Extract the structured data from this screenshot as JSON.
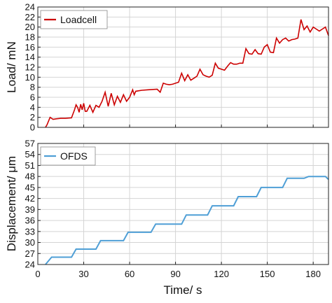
{
  "chart_data": [
    {
      "type": "line",
      "title": "",
      "xlabel": "",
      "ylabel": "Load/ mN",
      "xlim": [
        0,
        190
      ],
      "ylim": [
        0,
        24
      ],
      "xticks": [
        0,
        30,
        60,
        90,
        120,
        150,
        180
      ],
      "yticks": [
        0,
        2,
        4,
        6,
        8,
        10,
        12,
        14,
        16,
        18,
        20,
        22,
        24
      ],
      "grid": true,
      "legend_position": "top-left",
      "series": [
        {
          "name": "Loadcell",
          "color": "#cc0000",
          "x": [
            5,
            6,
            8,
            10,
            12,
            15,
            18,
            22,
            24,
            25,
            26,
            27,
            28,
            29,
            30,
            31,
            32,
            34,
            36,
            38,
            40,
            42,
            44,
            46,
            48,
            50,
            52,
            54,
            56,
            58,
            60,
            62,
            63,
            64,
            66,
            68,
            72,
            78,
            80,
            82,
            84,
            86,
            88,
            92,
            94,
            96,
            98,
            100,
            102,
            104,
            106,
            108,
            110,
            112,
            114,
            116,
            118,
            120,
            122,
            124,
            126,
            128,
            130,
            132,
            134,
            136,
            138,
            140,
            142,
            144,
            146,
            148,
            150,
            152,
            154,
            156,
            158,
            160,
            162,
            164,
            166,
            168,
            170,
            172,
            174,
            176,
            178,
            180,
            182,
            184,
            186,
            188,
            190
          ],
          "y": [
            0,
            0.5,
            2.0,
            1.6,
            1.7,
            1.8,
            1.8,
            1.9,
            3.5,
            4.5,
            4.0,
            3.0,
            4.6,
            3.5,
            4.8,
            3.2,
            3.2,
            4.4,
            3.0,
            4.4,
            4.0,
            5.2,
            7.0,
            4.2,
            6.8,
            4.5,
            6.2,
            5.0,
            6.5,
            5.2,
            6.0,
            7.5,
            6.5,
            7.2,
            7.3,
            7.4,
            7.5,
            7.6,
            7.0,
            8.8,
            8.6,
            8.5,
            8.6,
            9.0,
            10.8,
            9.3,
            10.5,
            9.4,
            9.8,
            10.2,
            11.6,
            10.5,
            10.2,
            10.0,
            10.4,
            12.8,
            11.8,
            11.6,
            11.4,
            12.2,
            12.9,
            12.6,
            12.6,
            12.8,
            12.8,
            15.7,
            14.7,
            14.6,
            15.5,
            14.7,
            14.6,
            16.0,
            16.5,
            15.0,
            14.9,
            17.8,
            16.8,
            17.5,
            17.8,
            17.2,
            17.5,
            17.6,
            17.8,
            21.5,
            19.5,
            20.2,
            19.0,
            20.0,
            19.6,
            19.2,
            19.6,
            20.0,
            18.3
          ]
        }
      ]
    },
    {
      "type": "line",
      "title": "",
      "xlabel": "Time/ s",
      "ylabel": "Displacement/ μm",
      "xlim": [
        0,
        190
      ],
      "ylim": [
        24,
        57
      ],
      "xticks": [
        0,
        30,
        60,
        90,
        120,
        150,
        180
      ],
      "yticks": [
        24,
        27,
        30,
        33,
        36,
        39,
        42,
        45,
        48,
        51,
        54,
        57
      ],
      "grid": true,
      "legend_position": "top-left",
      "series": [
        {
          "name": "OFDS",
          "color": "#4f9fd6",
          "x": [
            5,
            9,
            22,
            25,
            38,
            41,
            56,
            59,
            74,
            77,
            94,
            97,
            111,
            114,
            128,
            131,
            143,
            146,
            160,
            163,
            174,
            177,
            188,
            190
          ],
          "y": [
            24,
            26,
            26,
            28.2,
            28.2,
            30.5,
            30.5,
            32.8,
            32.8,
            35,
            35,
            37.5,
            37.5,
            40,
            40,
            42.5,
            42.5,
            45,
            45,
            47.5,
            47.5,
            48,
            48,
            47.2
          ]
        }
      ]
    }
  ]
}
